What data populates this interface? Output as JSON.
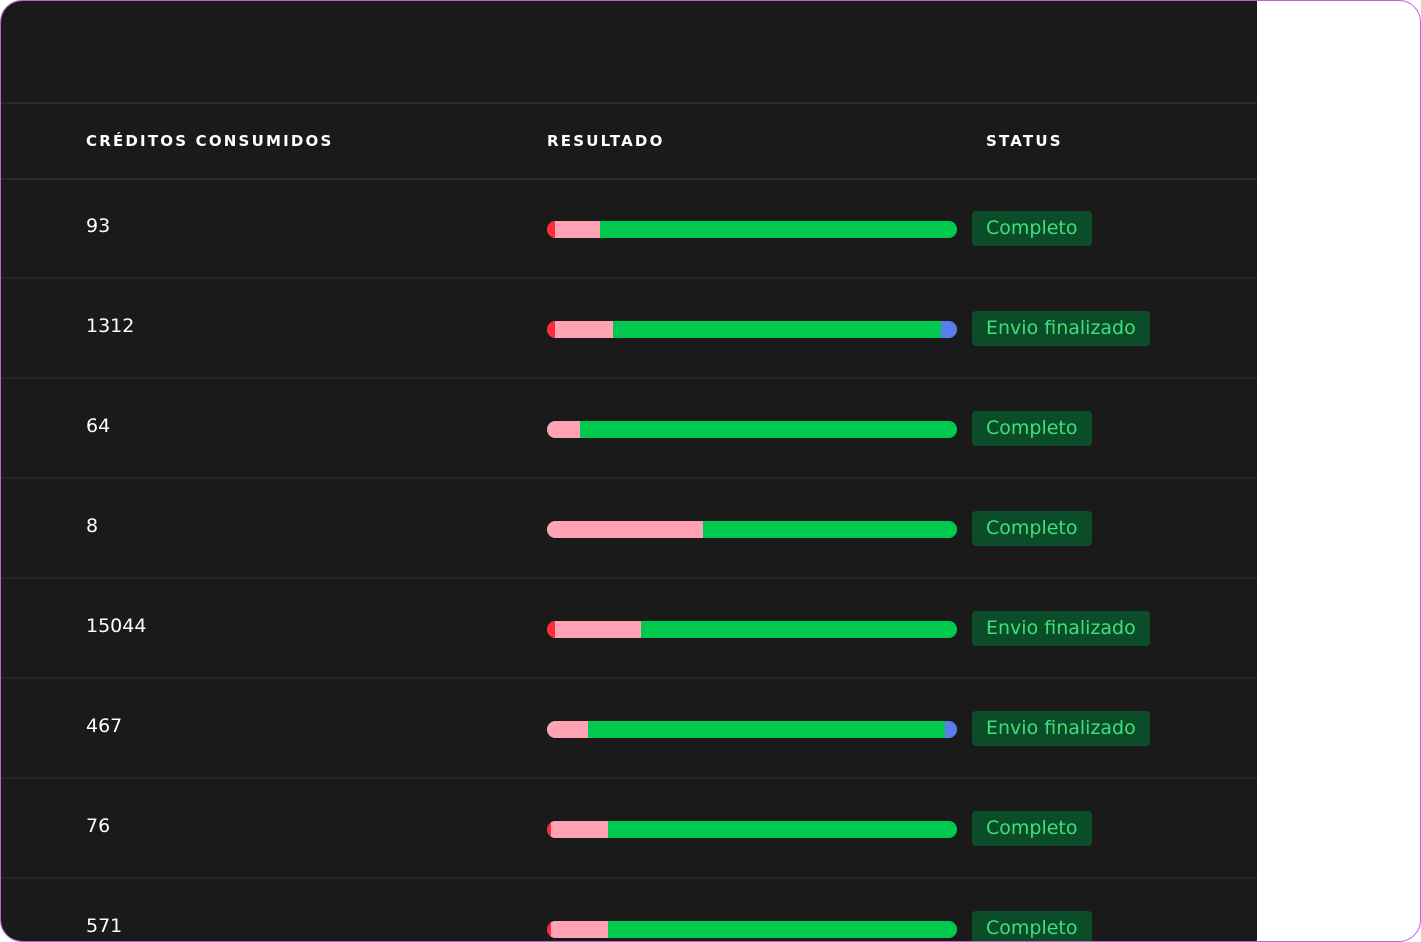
{
  "table": {
    "headers": {
      "credits": "CRÉDITOS CONSUMIDOS",
      "result": "RESULTADO",
      "status": "STATUS"
    },
    "rows": [
      {
        "credits": "93",
        "status": "Completo",
        "result": {
          "red": 0.02,
          "pink": 0.11,
          "green": 0.87,
          "blue": 0
        }
      },
      {
        "credits": "1312",
        "status": "Envio finalizado",
        "result": {
          "red": 0.02,
          "pink": 0.14,
          "green": 0.8,
          "blue": 0.04
        }
      },
      {
        "credits": "64",
        "status": "Completo",
        "result": {
          "red": 0,
          "pink": 0.08,
          "green": 0.92,
          "blue": 0
        }
      },
      {
        "credits": "8",
        "status": "Completo",
        "result": {
          "red": 0,
          "pink": 0.38,
          "green": 0.62,
          "blue": 0
        }
      },
      {
        "credits": "15044",
        "status": "Envio finalizado",
        "result": {
          "red": 0.02,
          "pink": 0.21,
          "green": 0.77,
          "blue": 0
        }
      },
      {
        "credits": "467",
        "status": "Envio finalizado",
        "result": {
          "red": 0,
          "pink": 0.1,
          "green": 0.87,
          "blue": 0.03
        }
      },
      {
        "credits": "76",
        "status": "Completo",
        "result": {
          "red": 0.01,
          "pink": 0.14,
          "green": 0.85,
          "blue": 0
        }
      },
      {
        "credits": "571",
        "status": "Completo",
        "result": {
          "red": 0.01,
          "pink": 0.14,
          "green": 0.85,
          "blue": 0
        }
      }
    ]
  },
  "colors": {
    "panel_bg": "#1a1a1a",
    "frame_border": "#c060e0",
    "bar_red": "#ff2a3a",
    "bar_pink": "#ffa3b4",
    "bar_green": "#00c950",
    "bar_blue": "#5b7cf0",
    "badge_bg": "#0b4d28",
    "badge_text": "#3ee07a"
  }
}
